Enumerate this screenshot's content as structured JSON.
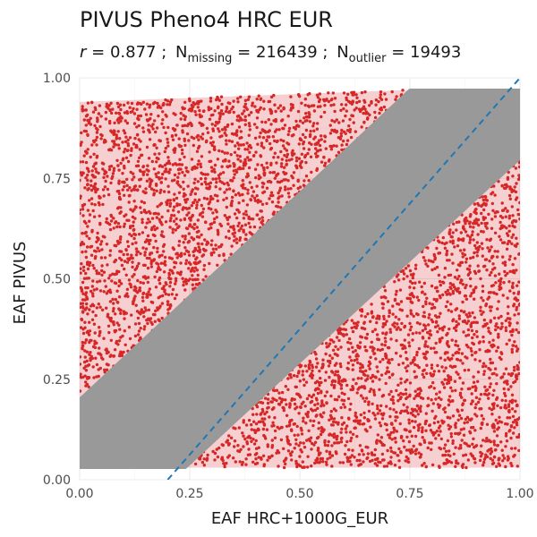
{
  "chart_data": {
    "type": "scatter",
    "title": "PIVUS Pheno4 HRC EUR",
    "subtitle": {
      "r_symbol": "r",
      "r_value": "= 0.877 ;",
      "n_label": "N",
      "missing_sub": "missing",
      "missing_value": "= 216439 ;",
      "outlier_sub": "outlier",
      "outlier_value": "= 19493"
    },
    "xlabel": "EAF HRC+1000G_EUR",
    "ylabel": "EAF PIVUS",
    "xlim": [
      0,
      1
    ],
    "ylim": [
      0,
      1
    ],
    "x_ticks": [
      0.0,
      0.25,
      0.5,
      0.75,
      1.0
    ],
    "y_ticks": [
      0.0,
      0.25,
      0.5,
      0.75,
      1.0
    ],
    "x_tick_labels": [
      "0.00",
      "0.25",
      "0.50",
      "0.75",
      "1.00"
    ],
    "y_tick_labels": [
      "0.00",
      "0.25",
      "0.50",
      "0.75",
      "1.00"
    ],
    "grid": true,
    "colors": {
      "inlier": "#999999",
      "outlier": "#d62728",
      "reference_line": "#1f77b4"
    },
    "series": [
      {
        "role": "inlier",
        "band_polygon": [
          [
            0,
            0.03
          ],
          [
            0.24,
            0.03
          ],
          [
            1,
            0.8
          ],
          [
            1,
            0.97
          ],
          [
            0.75,
            0.97
          ],
          [
            0,
            0.2
          ]
        ]
      },
      {
        "role": "outlier-upper-left",
        "band_polygon": [
          [
            0,
            0.2
          ],
          [
            0,
            0.94
          ],
          [
            0.75,
            0.97
          ]
        ]
      },
      {
        "role": "outlier-lower-right",
        "band_polygon": [
          [
            0.24,
            0.03
          ],
          [
            1,
            0.03
          ],
          [
            1,
            0.8
          ]
        ]
      }
    ],
    "reference_line": {
      "style": "dashed",
      "slope": 1.25,
      "intercept": -0.25
    }
  }
}
